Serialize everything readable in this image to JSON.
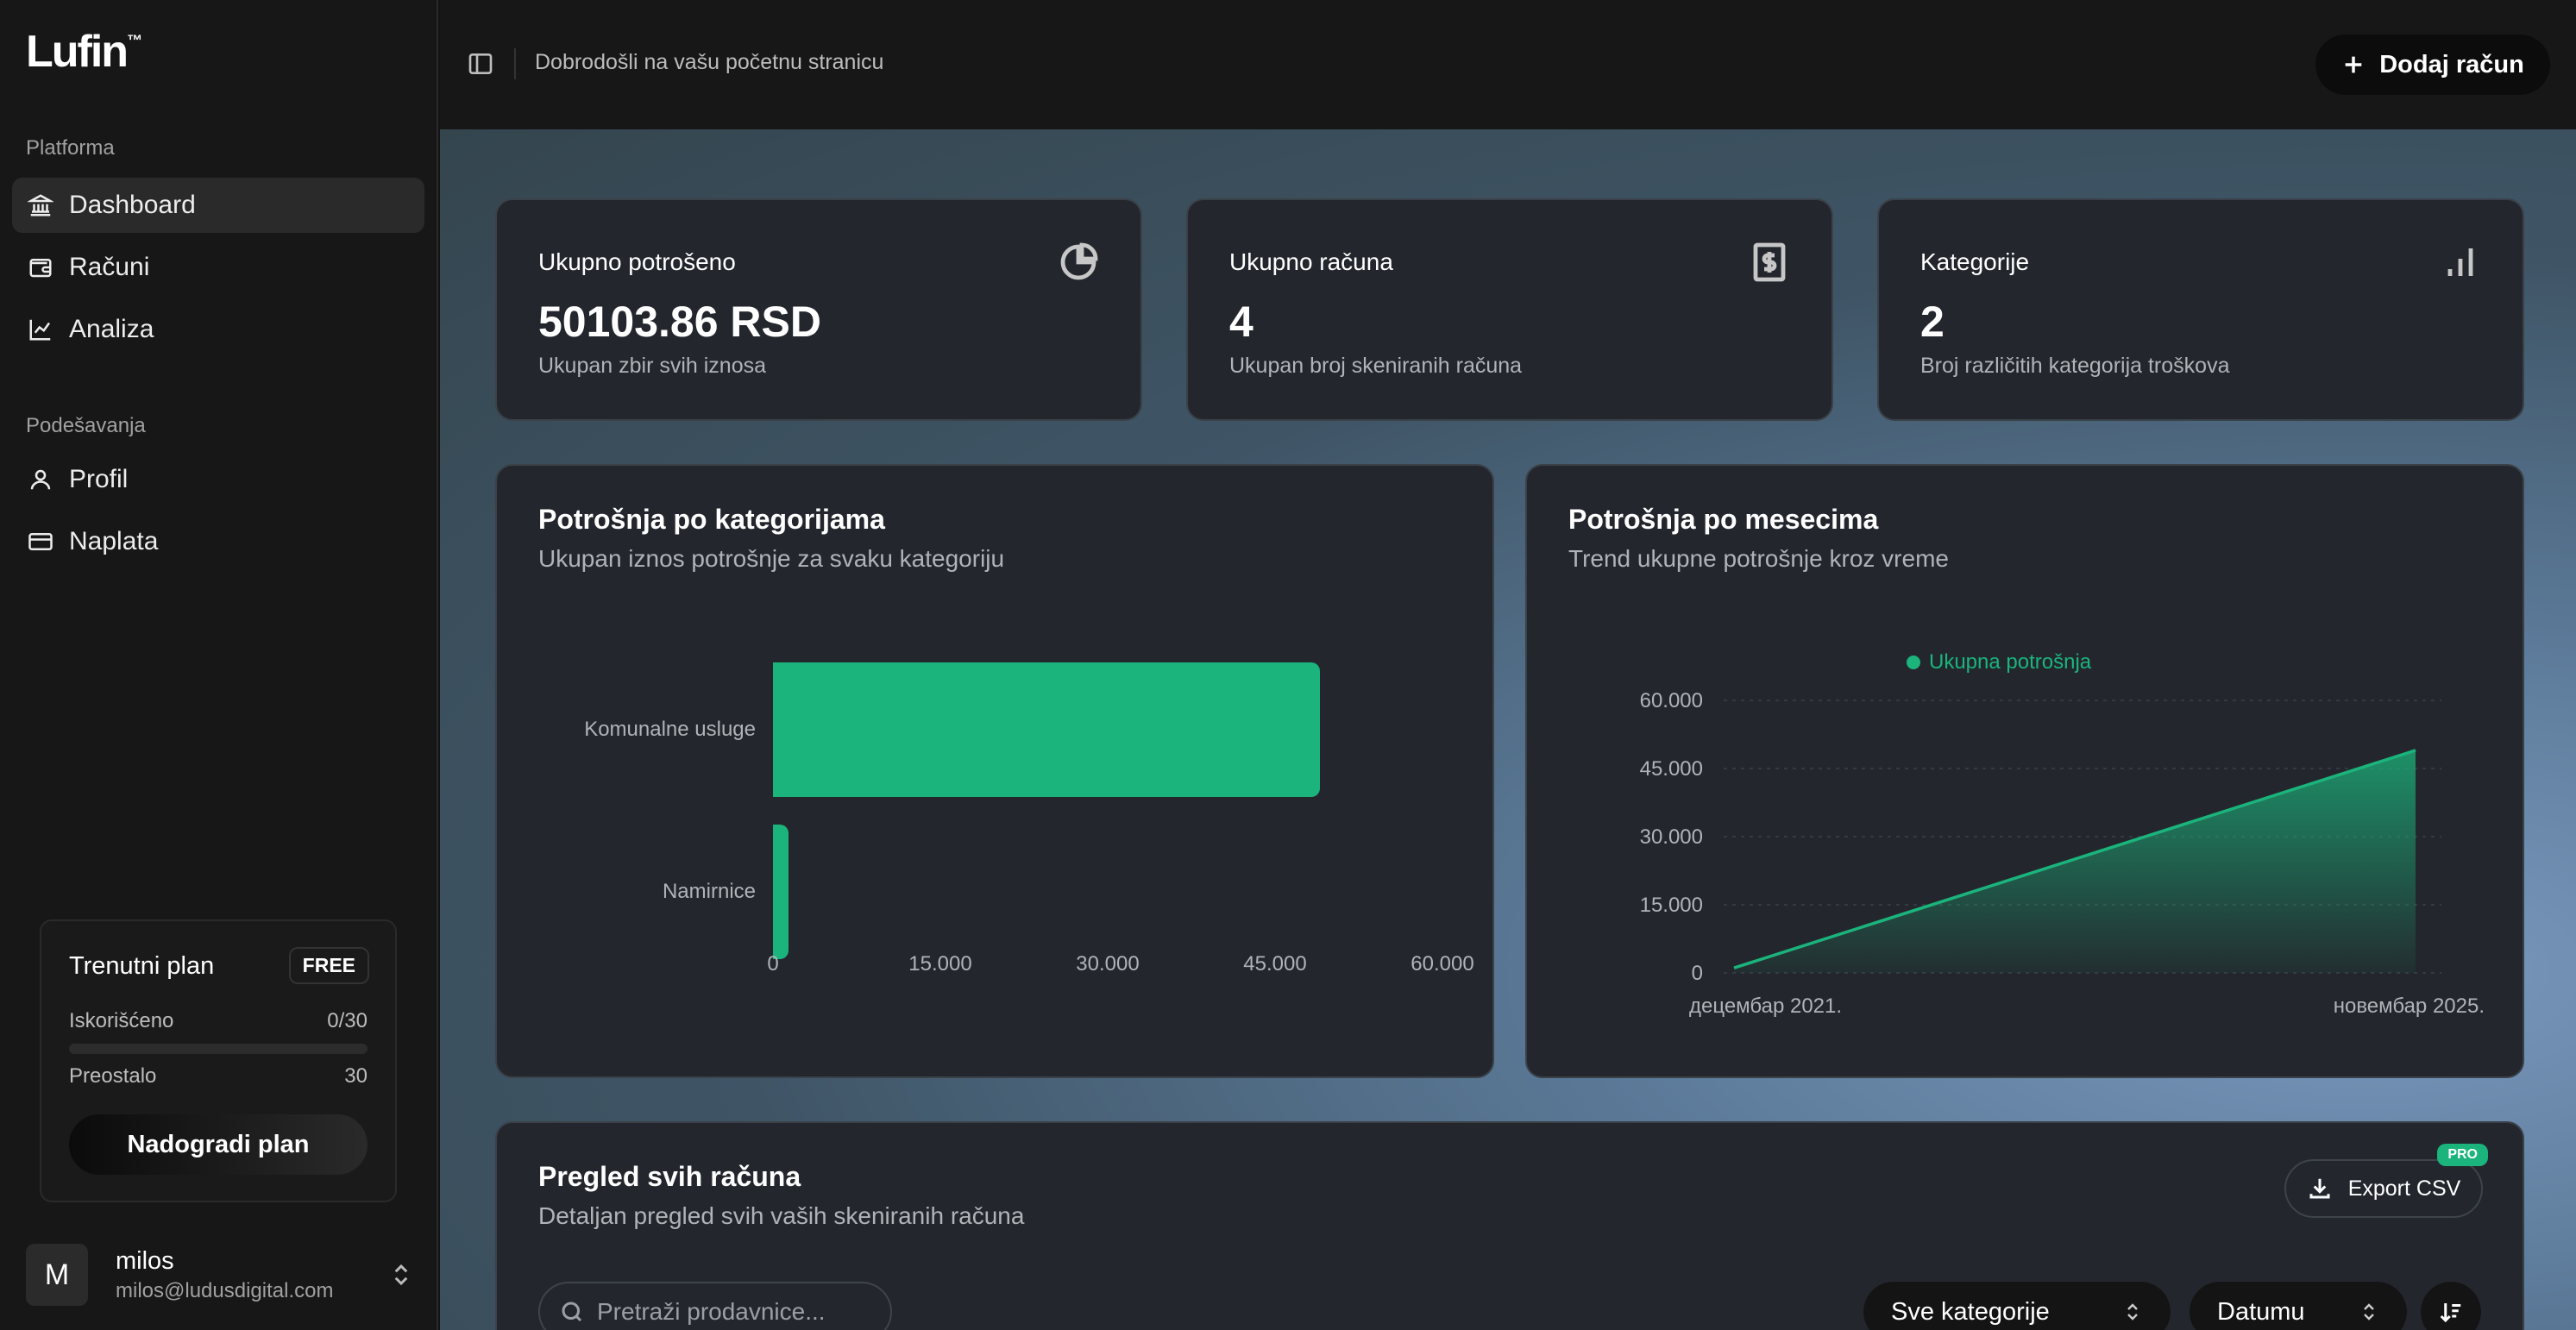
{
  "brand": {
    "name": "Lufin",
    "tm": "™"
  },
  "sidebar": {
    "section_platform": "Platforma",
    "platform_items": [
      {
        "label": "Dashboard",
        "icon": "bank-icon",
        "active": true
      },
      {
        "label": "Računi",
        "icon": "wallet-icon"
      },
      {
        "label": "Analiza",
        "icon": "chart-line-icon"
      }
    ],
    "section_settings": "Podešavanja",
    "settings_items": [
      {
        "label": "Profil",
        "icon": "user-icon"
      },
      {
        "label": "Naplata",
        "icon": "credit-card-icon"
      }
    ],
    "plan": {
      "title": "Trenutni plan",
      "badge": "FREE",
      "used_label": "Iskorišćeno",
      "used_value": "0/30",
      "used_fraction": 0,
      "remaining_label": "Preostalo",
      "remaining_value": "30",
      "upgrade_label": "Nadogradi plan"
    },
    "user": {
      "initial": "M",
      "name": "milos",
      "email": "milos@ludusdigital.com"
    }
  },
  "header": {
    "welcome": "Dobrodošli na vašu početnu stranicu",
    "add_label": "Dodaj račun"
  },
  "stats": [
    {
      "label": "Ukupno potrošeno",
      "value": "50103.86 RSD",
      "sub": "Ukupan zbir svih iznosa",
      "icon": "pie-chart-icon"
    },
    {
      "label": "Ukupno računa",
      "value": "4",
      "sub": "Ukupan broj skeniranih računa",
      "icon": "receipt-dollar-icon"
    },
    {
      "label": "Kategorije",
      "value": "2",
      "sub": "Broj različitih kategorija troškova",
      "icon": "bar-chart-icon"
    }
  ],
  "category_chart": {
    "title": "Potrošnja po kategorijama",
    "subtitle": "Ukupan iznos potrošnje za svaku kategoriju"
  },
  "monthly_chart": {
    "title": "Potrošnja po mesecima",
    "subtitle": "Trend ukupne potrošnje kroz vreme"
  },
  "chart_data": [
    {
      "type": "bar",
      "orientation": "horizontal",
      "categories": [
        "Komunalne usluge",
        "Namirnice"
      ],
      "values": [
        49000,
        1100
      ],
      "xlim": [
        0,
        60000
      ],
      "xticks": [
        "0",
        "15.000",
        "30.000",
        "45.000",
        "60.000"
      ],
      "color": "#1bb47c"
    },
    {
      "type": "area",
      "series": [
        {
          "name": "Ukupna potrošnja",
          "x": [
            "децембар 2021.",
            "новембар 2025."
          ],
          "values": [
            1100,
            49000
          ]
        }
      ],
      "ylim": [
        0,
        60000
      ],
      "yticks": [
        "60.000",
        "45.000",
        "30.000",
        "15.000",
        "0"
      ],
      "xticks": [
        "децембар 2021.",
        "новембар 2025."
      ],
      "grid": true,
      "legend": "top-center",
      "color": "#1bb47c"
    }
  ],
  "receipts": {
    "title": "Pregled svih računa",
    "subtitle": "Detaljan pregled svih vaših skeniranih računa",
    "export_label": "Export CSV",
    "pro_badge": "PRO",
    "search_placeholder": "Pretraži prodavnice...",
    "category_select": "Sve kategorije",
    "sort_select": "Datumu"
  }
}
